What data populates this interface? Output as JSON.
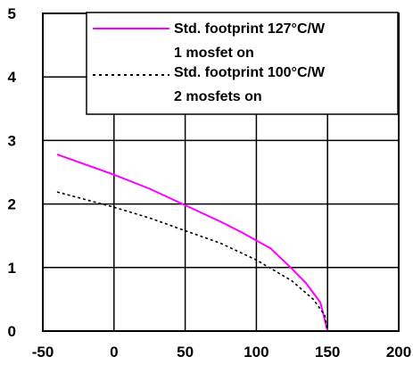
{
  "chart_data": {
    "type": "line",
    "title": "",
    "xlabel": "",
    "ylabel": "",
    "xlim": [
      -50,
      200
    ],
    "ylim": [
      0,
      5
    ],
    "x_ticks": [
      "-50",
      "0",
      "50",
      "100",
      "150",
      "200"
    ],
    "y_ticks": [
      "0",
      "1",
      "2",
      "3",
      "4",
      "5"
    ],
    "grid": true,
    "legend_position": "top-right",
    "series": [
      {
        "name": "Std. footprint 127°C/W",
        "name_line2": "1 mosfet on",
        "color": "#ff00ff",
        "style": "solid",
        "points": [
          [
            -40,
            2.78
          ],
          [
            0,
            2.46
          ],
          [
            25,
            2.24
          ],
          [
            50,
            1.98
          ],
          [
            75,
            1.72
          ],
          [
            90,
            1.55
          ],
          [
            110,
            1.3
          ],
          [
            125,
            0.98
          ],
          [
            135,
            0.75
          ],
          [
            145,
            0.45
          ],
          [
            150,
            0
          ]
        ]
      },
      {
        "name": "Std. footprint 100°C/W",
        "name_line2": "2 mosfets on",
        "color": "#000000",
        "style": "dotted",
        "points": [
          [
            -40,
            2.19
          ],
          [
            -25,
            2.1
          ],
          [
            0,
            1.95
          ],
          [
            25,
            1.78
          ],
          [
            50,
            1.58
          ],
          [
            75,
            1.38
          ],
          [
            100,
            1.12
          ],
          [
            125,
            0.79
          ],
          [
            140,
            0.5
          ],
          [
            148,
            0.25
          ],
          [
            150,
            0
          ]
        ]
      }
    ]
  }
}
